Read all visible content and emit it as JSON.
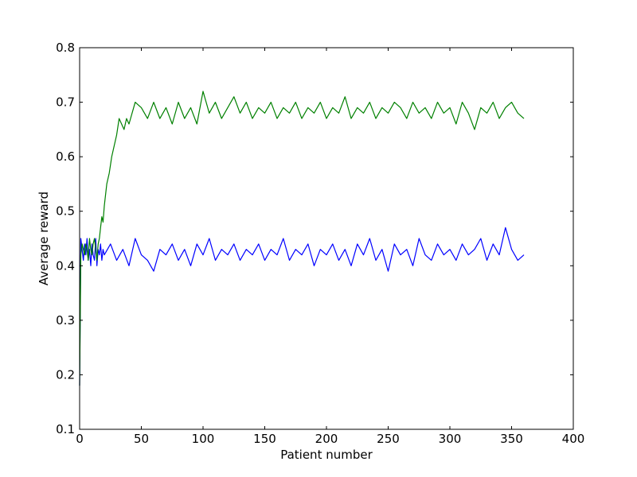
{
  "chart_data": {
    "type": "line",
    "title": "",
    "xlabel": "Patient number",
    "ylabel": "Average reward",
    "xlim": [
      0,
      400
    ],
    "ylim": [
      0.1,
      0.8
    ],
    "xticks": [
      0,
      50,
      100,
      150,
      200,
      250,
      300,
      350,
      400
    ],
    "yticks": [
      0.1,
      0.2,
      0.3,
      0.4,
      0.5,
      0.6,
      0.7,
      0.8
    ],
    "xtick_labels": [
      "0",
      "50",
      "100",
      "150",
      "200",
      "250",
      "300",
      "350",
      "400"
    ],
    "ytick_labels": [
      "0.1",
      "0.2",
      "0.3",
      "0.4",
      "0.5",
      "0.6",
      "0.7",
      "0.8"
    ],
    "grid": false,
    "legend": "none",
    "series": [
      {
        "color": "#0000ff",
        "x": [
          0,
          1,
          2,
          3,
          4,
          5,
          6,
          7,
          8,
          9,
          10,
          11,
          12,
          13,
          14,
          15,
          16,
          17,
          18,
          19,
          20,
          25,
          30,
          35,
          40,
          45,
          50,
          55,
          60,
          65,
          70,
          75,
          80,
          85,
          90,
          95,
          100,
          105,
          110,
          115,
          120,
          125,
          130,
          135,
          140,
          145,
          150,
          155,
          160,
          165,
          170,
          175,
          180,
          185,
          190,
          195,
          200,
          205,
          210,
          215,
          220,
          225,
          230,
          235,
          240,
          245,
          250,
          255,
          260,
          265,
          270,
          275,
          280,
          285,
          290,
          295,
          300,
          305,
          310,
          315,
          320,
          325,
          330,
          335,
          340,
          345,
          350,
          355,
          360
        ],
        "y": [
          0.18,
          0.45,
          0.43,
          0.41,
          0.44,
          0.42,
          0.45,
          0.41,
          0.43,
          0.4,
          0.44,
          0.42,
          0.41,
          0.45,
          0.4,
          0.43,
          0.42,
          0.44,
          0.41,
          0.43,
          0.42,
          0.44,
          0.41,
          0.43,
          0.4,
          0.45,
          0.42,
          0.41,
          0.39,
          0.43,
          0.42,
          0.44,
          0.41,
          0.43,
          0.4,
          0.44,
          0.42,
          0.45,
          0.41,
          0.43,
          0.42,
          0.44,
          0.41,
          0.43,
          0.42,
          0.44,
          0.41,
          0.43,
          0.42,
          0.45,
          0.41,
          0.43,
          0.42,
          0.44,
          0.4,
          0.43,
          0.42,
          0.44,
          0.41,
          0.43,
          0.4,
          0.44,
          0.42,
          0.45,
          0.41,
          0.43,
          0.39,
          0.44,
          0.42,
          0.43,
          0.4,
          0.45,
          0.42,
          0.41,
          0.44,
          0.42,
          0.43,
          0.41,
          0.44,
          0.42,
          0.43,
          0.45,
          0.41,
          0.44,
          0.42,
          0.47,
          0.43,
          0.41,
          0.42
        ]
      },
      {
        "color": "#008000",
        "x": [
          0,
          1,
          2,
          3,
          4,
          5,
          6,
          7,
          8,
          9,
          10,
          11,
          12,
          13,
          14,
          15,
          16,
          17,
          18,
          19,
          20,
          22,
          24,
          26,
          28,
          30,
          32,
          34,
          36,
          38,
          40,
          45,
          50,
          55,
          60,
          65,
          70,
          75,
          80,
          85,
          90,
          95,
          100,
          105,
          110,
          115,
          120,
          125,
          130,
          135,
          140,
          145,
          150,
          155,
          160,
          165,
          170,
          175,
          180,
          185,
          190,
          195,
          200,
          205,
          210,
          215,
          220,
          225,
          230,
          235,
          240,
          245,
          250,
          255,
          260,
          265,
          270,
          275,
          280,
          285,
          290,
          295,
          300,
          305,
          310,
          315,
          320,
          325,
          330,
          335,
          340,
          345,
          350,
          355,
          360
        ],
        "y": [
          0.18,
          0.42,
          0.44,
          0.43,
          0.42,
          0.44,
          0.43,
          0.41,
          0.45,
          0.43,
          0.42,
          0.44,
          0.45,
          0.43,
          0.41,
          0.44,
          0.45,
          0.47,
          0.49,
          0.48,
          0.51,
          0.55,
          0.57,
          0.6,
          0.62,
          0.64,
          0.67,
          0.66,
          0.65,
          0.67,
          0.66,
          0.7,
          0.69,
          0.67,
          0.7,
          0.67,
          0.69,
          0.66,
          0.7,
          0.67,
          0.69,
          0.66,
          0.72,
          0.68,
          0.7,
          0.67,
          0.69,
          0.71,
          0.68,
          0.7,
          0.67,
          0.69,
          0.68,
          0.7,
          0.67,
          0.69,
          0.68,
          0.7,
          0.67,
          0.69,
          0.68,
          0.7,
          0.67,
          0.69,
          0.68,
          0.71,
          0.67,
          0.69,
          0.68,
          0.7,
          0.67,
          0.69,
          0.68,
          0.7,
          0.69,
          0.67,
          0.7,
          0.68,
          0.69,
          0.67,
          0.7,
          0.68,
          0.69,
          0.66,
          0.7,
          0.68,
          0.65,
          0.69,
          0.68,
          0.7,
          0.67,
          0.69,
          0.7,
          0.68,
          0.67
        ]
      }
    ]
  }
}
